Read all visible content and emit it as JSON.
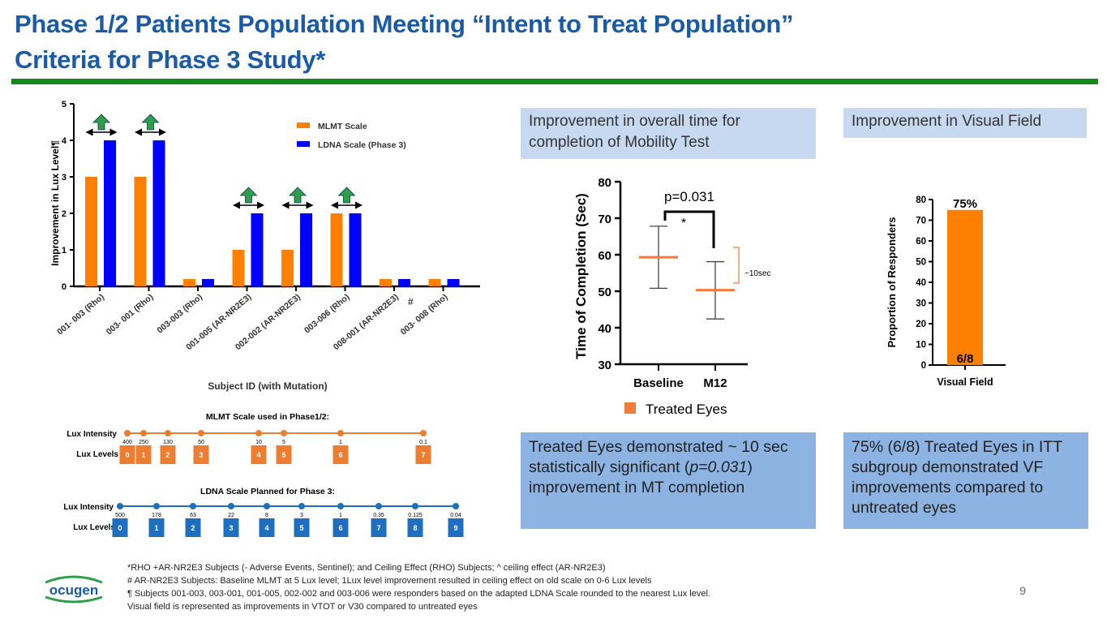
{
  "title_line1": "Phase 1/2 Patients Population Meeting “Intent to Treat Population”",
  "title_line2": "Criteria for Phase 3 Study*",
  "colors": {
    "title": "#1a5aa6",
    "rule": "#138a1b",
    "orange": "#ff8000",
    "blue": "#0000ff",
    "scale_orange": "#ed7d31",
    "scale_blue": "#1f6fc0",
    "arrow_green": "#2e9e4a"
  },
  "chart_data": [
    {
      "type": "bar",
      "title": "",
      "xlabel": "Subject ID (with Mutation)",
      "ylabel": "Improvement in Lux Level¶",
      "ylim": [
        0,
        5
      ],
      "yticks": [
        "0",
        "1",
        "2",
        "3",
        "4",
        "5"
      ],
      "categories": [
        "001- 003 (Rho)",
        "003- 001 (Rho)",
        "003-003 (Rho)",
        "001-005 (AR-NR2E3)",
        "002-002 (AR-NR2E3)",
        "003-006 (Rho)",
        "008-001 (AR-NR2E3)",
        "003- 008 (Rho)"
      ],
      "series": [
        {
          "name": "MLMT Scale",
          "values": [
            3,
            3,
            0.2,
            1,
            1,
            2,
            0.2,
            0.2
          ]
        },
        {
          "name": "LDNA Scale (Phase 3)",
          "values": [
            4,
            4,
            0.2,
            2,
            2,
            2,
            0.2,
            0.2
          ]
        }
      ],
      "improvement_arrows": [
        true,
        true,
        false,
        true,
        true,
        true,
        false,
        false
      ],
      "annotations": [
        "#"
      ],
      "legend": "top-right"
    },
    {
      "type": "scatter",
      "title": "",
      "ylabel": "Time of Completion (Sec)",
      "ylim": [
        30,
        80
      ],
      "yticks": [
        "30",
        "40",
        "50",
        "60",
        "70",
        "80"
      ],
      "categories": [
        "Baseline",
        "M12"
      ],
      "mean": [
        59.3,
        50.3
      ],
      "err_low": [
        50.8,
        42.4
      ],
      "err_high": [
        67.8,
        58.1
      ],
      "series_name": "Treated Eyes",
      "p_value": "p=0.031",
      "sig_mark": "*",
      "diff_label": "~10sec",
      "legend": "bottom"
    },
    {
      "type": "bar",
      "ylabel": "Proportion of Responders",
      "ylim": [
        0,
        80
      ],
      "yticks": [
        "0",
        "10",
        "20",
        "30",
        "40",
        "50",
        "60",
        "70",
        "80"
      ],
      "categories": [
        "Visual Field"
      ],
      "values": [
        75
      ],
      "top_label": "75%",
      "inner_label": "6/8"
    }
  ],
  "boxes": {
    "mobility_heading": "Improvement in overall time for completion of Mobility Test",
    "vf_heading": "Improvement in Visual Field",
    "mobility_text_a": "Treated Eyes demonstrated ~ 10 sec statistically significant (",
    "mobility_text_p": "p=0.031",
    "mobility_text_b": ") improvement in MT completion",
    "vf_text": "75% (6/8) Treated Eyes in ITT subgroup demonstrated VF improvements compared to untreated eyes"
  },
  "mlmt_scale": {
    "title": "MLMT Scale used in Phase1/2:",
    "intensity_label": "Lux Intensity",
    "levels_label": "Lux Levels",
    "intensities": [
      "400",
      "250",
      "130",
      "50",
      "10",
      "5",
      "1",
      "0.1"
    ],
    "levels": [
      "0",
      "1",
      "2",
      "3",
      "4",
      "5",
      "6",
      "7"
    ]
  },
  "ldna_scale": {
    "title": "LDNA Scale Planned for Phase 3:",
    "intensity_label": "Lux Intensity",
    "levels_label": "Lux Levels",
    "intensities": [
      "500",
      "178",
      "63",
      "22",
      "8",
      "3",
      "1",
      "0.35",
      "0.125",
      "0.04"
    ],
    "levels": [
      "0",
      "1",
      "2",
      "3",
      "4",
      "5",
      "6",
      "7",
      "8",
      "9"
    ]
  },
  "footnotes": [
    "*RHO +AR-NR2E3  Subjects (- Adverse Events, Sentinel); and Ceiling Effect (RHO) Subjects; ^ ceiling effect (AR-NR2E3)",
    "# AR-NR2E3  Subjects: Baseline MLMT at 5 Lux level; 1Lux level improvement resulted in ceiling effect on old scale on 0-6 Lux levels",
    "¶ Subjects 001-003, 003-001, 001-005, 002-002 and 003-006 were responders based on the adapted LDNA Scale rounded to the nearest Lux level.",
    "Visual field is represented as improvements in  VTOT  or V30  compared to untreated eyes"
  ],
  "logo": "ocugen",
  "page_number": "9"
}
